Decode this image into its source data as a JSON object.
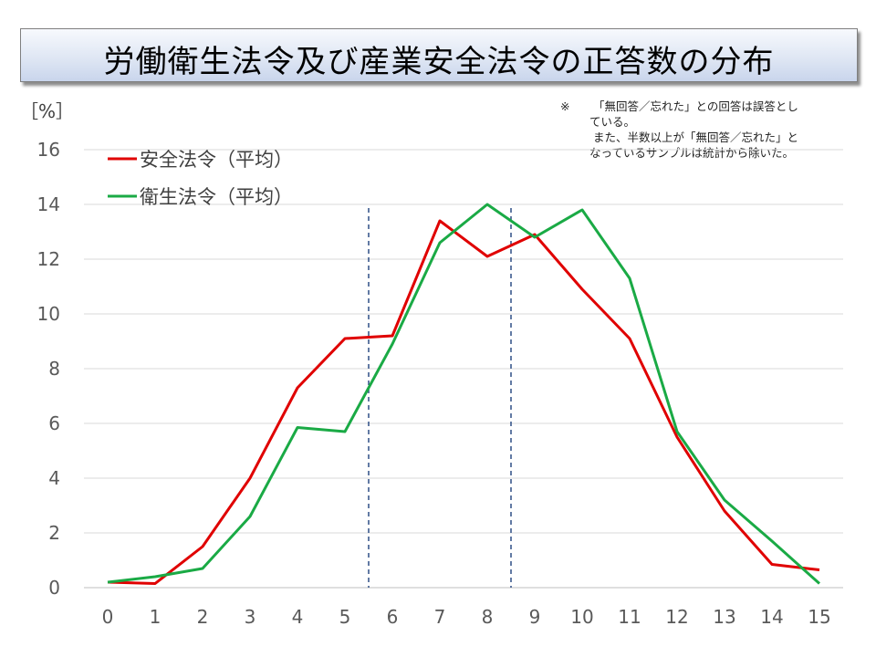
{
  "title": "労働衛生法令及び産業安全法令の正答数の分布",
  "unit_label": "［%］",
  "note": {
    "mark": "※",
    "line1": "「無回答／忘れた」との回答は誤答とし",
    "line2": "ている。",
    "line3": "また、半数以上が「無回答／忘れた」と",
    "line4": "なっているサンプルは統計から除いた。"
  },
  "chart_data": {
    "type": "line",
    "x": [
      0,
      1,
      2,
      3,
      4,
      5,
      6,
      7,
      8,
      9,
      10,
      11,
      12,
      13,
      14,
      15
    ],
    "ylim": [
      0,
      16
    ],
    "yticks": [
      0,
      2,
      4,
      6,
      8,
      10,
      12,
      14,
      16
    ],
    "xticks": [
      "0",
      "1",
      "2",
      "3",
      "4",
      "5",
      "6",
      "7",
      "8",
      "9",
      "10",
      "11",
      "12",
      "13",
      "14",
      "15"
    ],
    "grid": true,
    "legend": "top-left",
    "series": [
      {
        "name": "安全法令（平均）",
        "color": "#e00000",
        "values": [
          0.2,
          0.15,
          1.5,
          4.0,
          7.3,
          9.1,
          9.2,
          13.4,
          12.1,
          12.9,
          10.9,
          9.1,
          5.5,
          2.8,
          0.85,
          0.65
        ]
      },
      {
        "name": "衛生法令（平均）",
        "color": "#1aaa45",
        "values": [
          0.2,
          0.4,
          0.7,
          2.6,
          5.85,
          5.7,
          8.9,
          12.6,
          14.0,
          12.8,
          13.8,
          11.3,
          5.7,
          3.2,
          1.7,
          0.15
        ]
      }
    ],
    "reference_lines": {
      "x": [
        5.5,
        8.5
      ],
      "color": "#2e4e86",
      "style": "dashed"
    }
  }
}
